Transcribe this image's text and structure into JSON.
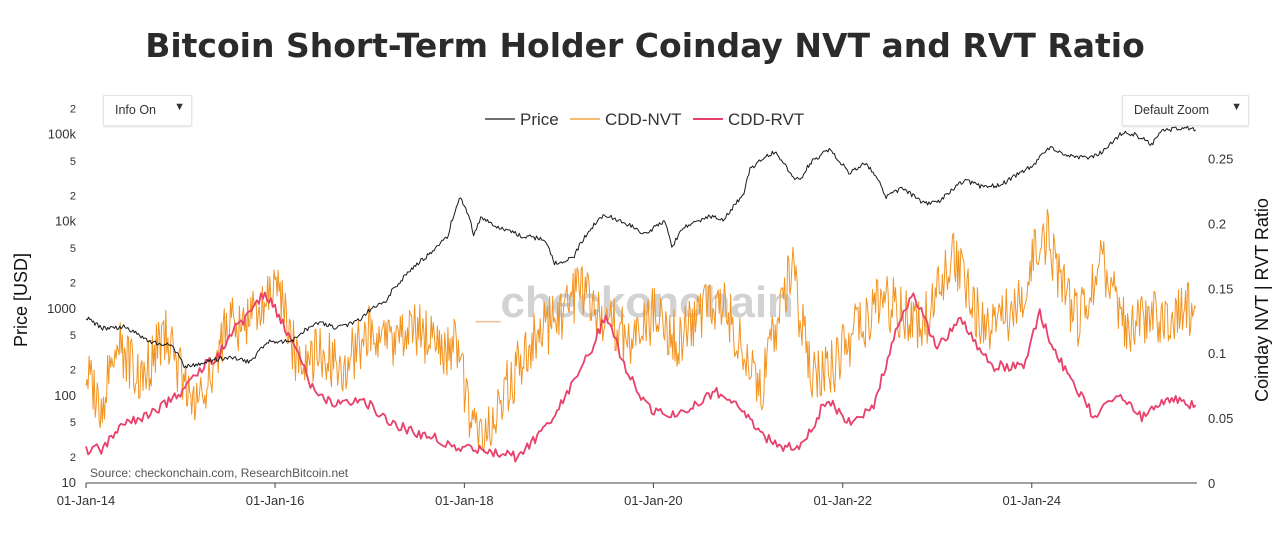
{
  "title": "Bitcoin Short-Term Holder Coinday NVT and RVT Ratio",
  "controls": {
    "info_label": "Info On",
    "zoom_label": "Default Zoom",
    "arrow": "▼"
  },
  "source": "Source: checkonchain.com, ResearchBitcoin.net",
  "watermark": "_checkonchain",
  "colors": {
    "price": "#1a1a1a",
    "nvt": "#f29422",
    "rvt": "#e8416b"
  },
  "chart_data": {
    "type": "line",
    "title": "Bitcoin Short-Term Holder Coinday NVT and RVT Ratio",
    "x_axis": {
      "ticks": [
        "01-Jan-14",
        "01-Jan-16",
        "01-Jan-18",
        "01-Jan-20",
        "01-Jan-22",
        "01-Jan-24"
      ],
      "range": [
        "2014-01-01",
        "2025-09-30"
      ]
    },
    "y_left": {
      "label": "Price [USD]",
      "scale": "log",
      "range": [
        10,
        250000
      ],
      "tick_labels": [
        {
          "v": 10,
          "t": "10"
        },
        {
          "v": 20,
          "t": "2"
        },
        {
          "v": 50,
          "t": "5"
        },
        {
          "v": 100,
          "t": "100"
        },
        {
          "v": 200,
          "t": "2"
        },
        {
          "v": 500,
          "t": "5"
        },
        {
          "v": 1000,
          "t": "1000"
        },
        {
          "v": 2000,
          "t": "2"
        },
        {
          "v": 5000,
          "t": "5"
        },
        {
          "v": 10000,
          "t": "10k"
        },
        {
          "v": 20000,
          "t": "2"
        },
        {
          "v": 50000,
          "t": "5"
        },
        {
          "v": 100000,
          "t": "100k"
        },
        {
          "v": 200000,
          "t": "2"
        }
      ]
    },
    "y_right": {
      "label": "Coinday NVT | RVT Ratio",
      "scale": "linear",
      "range": [
        0,
        0.295
      ],
      "tick_labels": [
        {
          "v": 0,
          "t": "0"
        },
        {
          "v": 0.05,
          "t": "0.05"
        },
        {
          "v": 0.1,
          "t": "0.1"
        },
        {
          "v": 0.15,
          "t": "0.15"
        },
        {
          "v": 0.2,
          "t": "0.2"
        },
        {
          "v": 0.25,
          "t": "0.25"
        }
      ]
    },
    "legend_position": "top-center",
    "series": [
      {
        "name": "Price",
        "axis": "left",
        "points": [
          [
            "2014-01-01",
            800
          ],
          [
            "2014-03-01",
            600
          ],
          [
            "2014-06-01",
            620
          ],
          [
            "2014-09-01",
            420
          ],
          [
            "2014-12-01",
            370
          ],
          [
            "2015-01-15",
            220
          ],
          [
            "2015-04-01",
            240
          ],
          [
            "2015-07-01",
            280
          ],
          [
            "2015-10-01",
            245
          ],
          [
            "2015-12-01",
            420
          ],
          [
            "2016-03-01",
            420
          ],
          [
            "2016-06-15",
            700
          ],
          [
            "2016-09-01",
            600
          ],
          [
            "2016-12-01",
            760
          ],
          [
            "2017-01-05",
            1000
          ],
          [
            "2017-03-01",
            1200
          ],
          [
            "2017-06-01",
            2600
          ],
          [
            "2017-09-01",
            4500
          ],
          [
            "2017-11-01",
            7000
          ],
          [
            "2017-12-17",
            19000
          ],
          [
            "2018-02-06",
            7000
          ],
          [
            "2018-03-05",
            11000
          ],
          [
            "2018-05-01",
            9000
          ],
          [
            "2018-08-01",
            7000
          ],
          [
            "2018-11-01",
            6300
          ],
          [
            "2018-12-15",
            3300
          ],
          [
            "2019-03-01",
            3900
          ],
          [
            "2019-06-26",
            12000
          ],
          [
            "2019-09-01",
            10000
          ],
          [
            "2019-12-01",
            7200
          ],
          [
            "2020-02-13",
            10300
          ],
          [
            "2020-03-12",
            5000
          ],
          [
            "2020-05-01",
            8800
          ],
          [
            "2020-08-01",
            11500
          ],
          [
            "2020-10-01",
            10700
          ],
          [
            "2020-12-15",
            20000
          ],
          [
            "2021-01-08",
            40000
          ],
          [
            "2021-03-15",
            58000
          ],
          [
            "2021-04-14",
            63000
          ],
          [
            "2021-06-20",
            33000
          ],
          [
            "2021-07-20",
            30000
          ],
          [
            "2021-09-01",
            48000
          ],
          [
            "2021-11-10",
            67000
          ],
          [
            "2022-01-24",
            36000
          ],
          [
            "2022-03-28",
            47000
          ],
          [
            "2022-06-18",
            19000
          ],
          [
            "2022-08-15",
            24000
          ],
          [
            "2022-11-09",
            16500
          ],
          [
            "2022-12-31",
            16500
          ],
          [
            "2023-03-01",
            23000
          ],
          [
            "2023-04-14",
            30000
          ],
          [
            "2023-06-15",
            25500
          ],
          [
            "2023-09-01",
            26000
          ],
          [
            "2023-12-01",
            38000
          ],
          [
            "2024-01-11",
            46000
          ],
          [
            "2024-03-13",
            73000
          ],
          [
            "2024-05-01",
            58000
          ],
          [
            "2024-08-05",
            54000
          ],
          [
            "2024-10-01",
            63000
          ],
          [
            "2024-12-17",
            106000
          ],
          [
            "2025-02-01",
            100000
          ],
          [
            "2025-04-08",
            77000
          ],
          [
            "2025-05-22",
            110000
          ],
          [
            "2025-08-14",
            122000
          ],
          [
            "2025-09-25",
            113000
          ]
        ]
      },
      {
        "name": "CDD-NVT",
        "axis": "right",
        "points": [
          [
            "2014-01-01",
            0.085
          ],
          [
            "2014-03-01",
            0.06
          ],
          [
            "2014-05-01",
            0.11
          ],
          [
            "2014-08-01",
            0.08
          ],
          [
            "2014-11-01",
            0.115
          ],
          [
            "2015-01-01",
            0.085
          ],
          [
            "2015-04-01",
            0.06
          ],
          [
            "2015-07-01",
            0.13
          ],
          [
            "2015-09-01",
            0.12
          ],
          [
            "2015-11-01",
            0.14
          ],
          [
            "2016-01-01",
            0.155
          ],
          [
            "2016-04-01",
            0.09
          ],
          [
            "2016-07-01",
            0.1
          ],
          [
            "2016-10-01",
            0.09
          ],
          [
            "2017-01-01",
            0.12
          ],
          [
            "2017-04-01",
            0.11
          ],
          [
            "2017-07-01",
            0.12
          ],
          [
            "2017-10-01",
            0.1
          ],
          [
            "2017-12-01",
            0.11
          ],
          [
            "2018-02-01",
            0.04
          ],
          [
            "2018-04-01",
            0.045
          ],
          [
            "2018-07-01",
            0.08
          ],
          [
            "2018-10-01",
            0.11
          ],
          [
            "2019-01-01",
            0.13
          ],
          [
            "2019-04-01",
            0.15
          ],
          [
            "2019-07-01",
            0.125
          ],
          [
            "2019-10-01",
            0.11
          ],
          [
            "2020-01-01",
            0.13
          ],
          [
            "2020-04-01",
            0.11
          ],
          [
            "2020-07-01",
            0.13
          ],
          [
            "2020-10-01",
            0.14
          ],
          [
            "2021-01-01",
            0.09
          ],
          [
            "2021-02-15",
            0.07
          ],
          [
            "2021-05-01",
            0.13
          ],
          [
            "2021-06-15",
            0.17
          ],
          [
            "2021-09-01",
            0.08
          ],
          [
            "2021-12-01",
            0.09
          ],
          [
            "2022-03-01",
            0.12
          ],
          [
            "2022-06-01",
            0.14
          ],
          [
            "2022-08-01",
            0.135
          ],
          [
            "2022-10-01",
            0.12
          ],
          [
            "2022-12-01",
            0.13
          ],
          [
            "2023-03-01",
            0.175
          ],
          [
            "2023-06-01",
            0.13
          ],
          [
            "2023-09-01",
            0.12
          ],
          [
            "2023-12-01",
            0.15
          ],
          [
            "2024-01-15",
            0.18
          ],
          [
            "2024-03-01",
            0.19
          ],
          [
            "2024-05-01",
            0.15
          ],
          [
            "2024-07-01",
            0.125
          ],
          [
            "2024-10-01",
            0.17
          ],
          [
            "2025-01-01",
            0.12
          ],
          [
            "2025-04-01",
            0.125
          ],
          [
            "2025-07-01",
            0.13
          ],
          [
            "2025-09-25",
            0.135
          ]
        ]
      },
      {
        "name": "CDD-RVT",
        "axis": "right",
        "points": [
          [
            "2014-01-01",
            0.026
          ],
          [
            "2014-03-01",
            0.026
          ],
          [
            "2014-06-01",
            0.045
          ],
          [
            "2014-10-01",
            0.055
          ],
          [
            "2015-01-01",
            0.07
          ],
          [
            "2015-04-01",
            0.09
          ],
          [
            "2015-06-01",
            0.1
          ],
          [
            "2015-08-01",
            0.12
          ],
          [
            "2015-10-01",
            0.13
          ],
          [
            "2015-11-15",
            0.145
          ],
          [
            "2016-01-01",
            0.135
          ],
          [
            "2016-03-01",
            0.11
          ],
          [
            "2016-06-01",
            0.07
          ],
          [
            "2016-09-01",
            0.06
          ],
          [
            "2016-12-01",
            0.065
          ],
          [
            "2017-03-01",
            0.05
          ],
          [
            "2017-06-01",
            0.04
          ],
          [
            "2017-09-01",
            0.035
          ],
          [
            "2017-12-01",
            0.028
          ],
          [
            "2018-03-01",
            0.025
          ],
          [
            "2018-06-01",
            0.022
          ],
          [
            "2018-08-01",
            0.02
          ],
          [
            "2018-11-01",
            0.04
          ],
          [
            "2019-02-01",
            0.07
          ],
          [
            "2019-05-01",
            0.1
          ],
          [
            "2019-07-01",
            0.13
          ],
          [
            "2019-09-01",
            0.095
          ],
          [
            "2019-12-01",
            0.06
          ],
          [
            "2020-03-01",
            0.05
          ],
          [
            "2020-06-01",
            0.06
          ],
          [
            "2020-09-01",
            0.07
          ],
          [
            "2020-12-01",
            0.06
          ],
          [
            "2021-02-01",
            0.04
          ],
          [
            "2021-05-01",
            0.028
          ],
          [
            "2021-08-01",
            0.03
          ],
          [
            "2021-11-01",
            0.065
          ],
          [
            "2022-02-01",
            0.045
          ],
          [
            "2022-05-01",
            0.06
          ],
          [
            "2022-08-01",
            0.12
          ],
          [
            "2022-10-01",
            0.145
          ],
          [
            "2023-01-01",
            0.105
          ],
          [
            "2023-04-01",
            0.125
          ],
          [
            "2023-08-01",
            0.09
          ],
          [
            "2023-12-01",
            0.09
          ],
          [
            "2024-02-01",
            0.13
          ],
          [
            "2024-04-01",
            0.1
          ],
          [
            "2024-06-01",
            0.08
          ],
          [
            "2024-09-01",
            0.05
          ],
          [
            "2024-12-01",
            0.07
          ],
          [
            "2025-03-01",
            0.05
          ],
          [
            "2025-06-01",
            0.065
          ],
          [
            "2025-09-25",
            0.06
          ]
        ]
      }
    ]
  }
}
